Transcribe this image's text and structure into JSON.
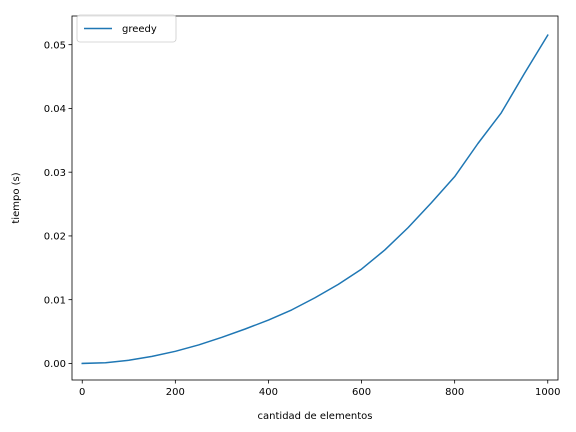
{
  "chart_data": {
    "type": "line",
    "xlabel": "cantidad de elementos",
    "ylabel": "tiempo (s)",
    "xlim": [
      -22,
      1022
    ],
    "ylim": [
      -0.0026,
      0.0545
    ],
    "xticks": [
      0,
      200,
      400,
      600,
      800,
      1000
    ],
    "xtick_labels": [
      "0",
      "200",
      "400",
      "600",
      "800",
      "1000"
    ],
    "yticks": [
      0.0,
      0.01,
      0.02,
      0.03,
      0.04,
      0.05
    ],
    "ytick_labels": [
      "0.00",
      "0.01",
      "0.02",
      "0.03",
      "0.04",
      "0.05"
    ],
    "grid": false,
    "legend": "top-left",
    "series": [
      {
        "name": "greedy",
        "color": "#1f77b4",
        "x": [
          0,
          50,
          100,
          150,
          200,
          250,
          300,
          350,
          400,
          450,
          500,
          550,
          600,
          650,
          700,
          750,
          800,
          850,
          900,
          950,
          1000
        ],
        "y": [
          0.0,
          0.0001,
          0.0005,
          0.0011,
          0.0019,
          0.0029,
          0.0041,
          0.0054,
          0.0068,
          0.0084,
          0.0103,
          0.0124,
          0.0148,
          0.0178,
          0.0213,
          0.0252,
          0.0293,
          0.0345,
          0.0393,
          0.0455,
          0.0515
        ]
      }
    ]
  }
}
